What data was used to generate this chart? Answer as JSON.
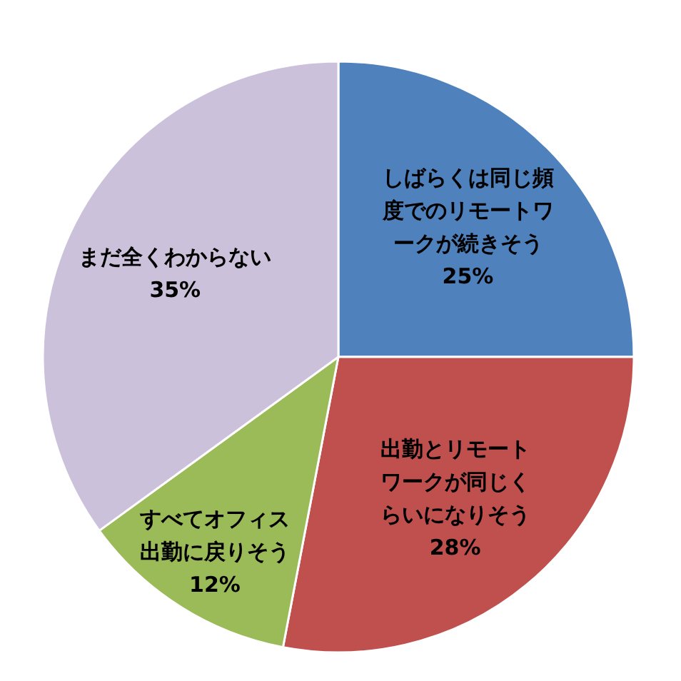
{
  "chart_data": {
    "type": "pie",
    "categories": [
      "しばらくは同じ頻度でのリモートワークが続きそう",
      "出勤とリモートワークが同じくらいになりそう",
      "すべてオフィス出勤に戻りそう",
      "まだ全くわからない"
    ],
    "values": [
      25,
      28,
      12,
      35
    ],
    "colors": [
      "#4f81bd",
      "#c0504d",
      "#9bbb59",
      "#ccc1da"
    ],
    "value_labels": [
      "25%",
      "28%",
      "12%",
      "35%"
    ]
  }
}
